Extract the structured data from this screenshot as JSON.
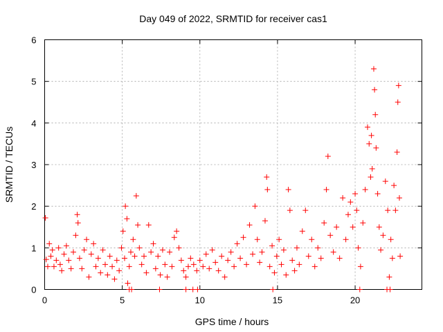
{
  "chart_data": {
    "type": "scatter",
    "title": "Day 049 of 2022, SRMTID for receiver cas1",
    "xlabel": "GPS time / hours",
    "ylabel": "SRMTID / TECUs",
    "xlim": [
      0,
      24.3
    ],
    "ylim": [
      0,
      6
    ],
    "xticks": [
      "0",
      "5",
      "10",
      "15",
      "20"
    ],
    "xtick_values": [
      0,
      5,
      10,
      15,
      20
    ],
    "yticks": [
      "0",
      "1",
      "2",
      "3",
      "4",
      "5",
      "6"
    ],
    "ytick_values": [
      0,
      1,
      2,
      3,
      4,
      5,
      6
    ],
    "grid": true,
    "marker": "+",
    "color": "#ff0000",
    "series": [
      {
        "name": "SRMTID",
        "points": [
          [
            0.05,
            1.72
          ],
          [
            0.1,
            0.72
          ],
          [
            0.2,
            0.55
          ],
          [
            0.3,
            1.1
          ],
          [
            0.4,
            0.8
          ],
          [
            0.5,
            0.95
          ],
          [
            0.6,
            0.55
          ],
          [
            0.75,
            0.7
          ],
          [
            0.9,
            1.0
          ],
          [
            1.0,
            0.6
          ],
          [
            1.1,
            0.45
          ],
          [
            1.25,
            0.85
          ],
          [
            1.4,
            1.05
          ],
          [
            1.55,
            0.7
          ],
          [
            1.7,
            0.5
          ],
          [
            1.85,
            0.9
          ],
          [
            2.0,
            1.3
          ],
          [
            2.1,
            1.8
          ],
          [
            2.15,
            1.6
          ],
          [
            2.25,
            0.75
          ],
          [
            2.4,
            0.5
          ],
          [
            2.55,
            0.95
          ],
          [
            2.7,
            1.2
          ],
          [
            2.85,
            0.3
          ],
          [
            3.0,
            0.85
          ],
          [
            3.15,
            1.1
          ],
          [
            3.3,
            0.55
          ],
          [
            3.45,
            0.75
          ],
          [
            3.6,
            0.4
          ],
          [
            3.75,
            0.95
          ],
          [
            3.9,
            0.6
          ],
          [
            4.05,
            0.35
          ],
          [
            4.2,
            0.8
          ],
          [
            4.35,
            0.55
          ],
          [
            4.5,
            0.25
          ],
          [
            4.65,
            0.7
          ],
          [
            4.8,
            0.45
          ],
          [
            4.95,
            1.0
          ],
          [
            5.05,
            1.4
          ],
          [
            5.15,
            0.75
          ],
          [
            5.2,
            2.0
          ],
          [
            5.3,
            1.7
          ],
          [
            5.35,
            0.15
          ],
          [
            5.45,
            0.55
          ],
          [
            5.55,
            0.9
          ],
          [
            5.7,
            1.2
          ],
          [
            5.8,
            0.8
          ],
          [
            5.9,
            2.25
          ],
          [
            6.0,
            1.55
          ],
          [
            6.1,
            1.0
          ],
          [
            6.25,
            0.6
          ],
          [
            6.4,
            0.8
          ],
          [
            6.55,
            0.4
          ],
          [
            6.7,
            1.55
          ],
          [
            6.85,
            0.9
          ],
          [
            7.0,
            1.1
          ],
          [
            7.15,
            0.5
          ],
          [
            7.3,
            0.8
          ],
          [
            7.45,
            0.35
          ],
          [
            7.6,
            0.95
          ],
          [
            7.75,
            0.6
          ],
          [
            7.9,
            0.3
          ],
          [
            8.05,
            0.9
          ],
          [
            8.2,
            0.55
          ],
          [
            8.35,
            1.25
          ],
          [
            8.5,
            1.4
          ],
          [
            8.65,
            1.0
          ],
          [
            8.8,
            0.7
          ],
          [
            8.95,
            0.45
          ],
          [
            9.1,
            0.3
          ],
          [
            9.25,
            0.55
          ],
          [
            9.4,
            0.75
          ],
          [
            9.6,
            0.6
          ],
          [
            9.8,
            0.45
          ],
          [
            10.0,
            0.7
          ],
          [
            10.2,
            0.55
          ],
          [
            10.4,
            0.85
          ],
          [
            10.6,
            0.5
          ],
          [
            10.8,
            0.95
          ],
          [
            11.0,
            0.65
          ],
          [
            11.2,
            0.45
          ],
          [
            11.4,
            0.8
          ],
          [
            11.6,
            0.3
          ],
          [
            11.8,
            0.7
          ],
          [
            12.0,
            0.9
          ],
          [
            12.2,
            0.55
          ],
          [
            12.4,
            1.1
          ],
          [
            12.6,
            0.75
          ],
          [
            12.8,
            1.25
          ],
          [
            13.0,
            0.6
          ],
          [
            13.2,
            1.55
          ],
          [
            13.4,
            0.85
          ],
          [
            13.55,
            2.0
          ],
          [
            13.7,
            1.2
          ],
          [
            13.85,
            0.65
          ],
          [
            14.0,
            0.9
          ],
          [
            14.2,
            1.65
          ],
          [
            14.3,
            2.7
          ],
          [
            14.35,
            2.4
          ],
          [
            14.5,
            0.55
          ],
          [
            14.65,
            1.05
          ],
          [
            14.8,
            0.4
          ],
          [
            14.95,
            0.8
          ],
          [
            15.1,
            1.2
          ],
          [
            15.25,
            0.6
          ],
          [
            15.4,
            0.95
          ],
          [
            15.55,
            0.35
          ],
          [
            15.7,
            2.4
          ],
          [
            15.8,
            1.9
          ],
          [
            15.95,
            0.7
          ],
          [
            16.1,
            0.45
          ],
          [
            16.25,
            1.0
          ],
          [
            16.4,
            0.6
          ],
          [
            16.6,
            1.4
          ],
          [
            16.8,
            1.9
          ],
          [
            17.0,
            0.8
          ],
          [
            17.2,
            1.2
          ],
          [
            17.4,
            0.55
          ],
          [
            17.6,
            1.0
          ],
          [
            17.8,
            0.75
          ],
          [
            18.0,
            1.6
          ],
          [
            18.15,
            2.4
          ],
          [
            18.25,
            3.2
          ],
          [
            18.4,
            1.3
          ],
          [
            18.6,
            0.9
          ],
          [
            18.8,
            1.5
          ],
          [
            19.0,
            0.75
          ],
          [
            19.2,
            2.2
          ],
          [
            19.4,
            1.2
          ],
          [
            19.55,
            1.8
          ],
          [
            19.7,
            2.1
          ],
          [
            19.85,
            1.5
          ],
          [
            20.0,
            2.3
          ],
          [
            20.1,
            1.9
          ],
          [
            20.2,
            1.0
          ],
          [
            20.35,
            0.55
          ],
          [
            20.5,
            1.6
          ],
          [
            20.65,
            2.4
          ],
          [
            20.8,
            3.9
          ],
          [
            20.9,
            3.5
          ],
          [
            21.0,
            2.7
          ],
          [
            21.05,
            3.7
          ],
          [
            21.1,
            2.9
          ],
          [
            21.2,
            5.3
          ],
          [
            21.25,
            4.8
          ],
          [
            21.3,
            4.2
          ],
          [
            21.35,
            3.4
          ],
          [
            21.45,
            2.3
          ],
          [
            21.55,
            1.5
          ],
          [
            21.65,
            0.95
          ],
          [
            21.8,
            1.3
          ],
          [
            21.95,
            2.6
          ],
          [
            22.1,
            1.9
          ],
          [
            22.2,
            0.3
          ],
          [
            22.3,
            1.2
          ],
          [
            22.4,
            0.75
          ],
          [
            22.5,
            2.5
          ],
          [
            22.6,
            1.9
          ],
          [
            22.7,
            3.3
          ],
          [
            22.75,
            4.5
          ],
          [
            22.8,
            4.9
          ],
          [
            22.85,
            2.2
          ],
          [
            22.9,
            0.8
          ],
          [
            5.45,
            0.0
          ],
          [
            5.6,
            0.0
          ],
          [
            7.4,
            0.0
          ],
          [
            9.1,
            0.0
          ],
          [
            9.55,
            0.0
          ],
          [
            9.85,
            0.0
          ],
          [
            14.7,
            0.0
          ],
          [
            20.3,
            0.0
          ],
          [
            22.05,
            0.0
          ],
          [
            22.25,
            0.0
          ]
        ]
      }
    ]
  }
}
